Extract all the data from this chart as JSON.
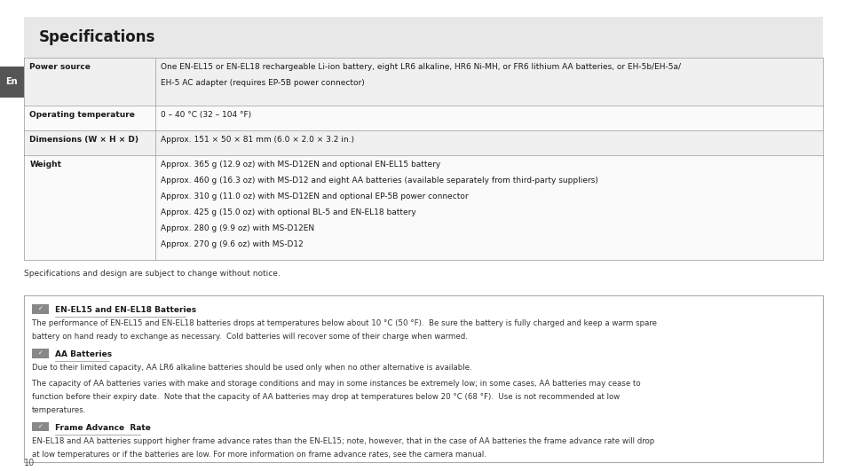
{
  "page_bg": "#ffffff",
  "header_bg": "#e8e8e8",
  "header_text": "Specifications",
  "header_font_size": 13,
  "header_bold": true,
  "table_row_bg1": "#f0f0f0",
  "table_row_bg2": "#fafafa",
  "left_sidebar_text": "En",
  "table_rows": [
    {
      "label": "Power source",
      "content": "One EN-EL15 or EN-EL18 rechargeable Li-ion battery, eight LR6 alkaline, HR6 Ni-MH, or FR6 lithium AA batteries, or EH-5b/EH-5a/\nEH-5 AC adapter (requires EP-5B power connector)"
    },
    {
      "label": "Operating temperature",
      "content": "0 – 40 °C (32 – 104 °F)"
    },
    {
      "label": "Dimensions (W × H × D)",
      "content": "Approx. 151 × 50 × 81 mm (6.0 × 2.0 × 3.2 in.)"
    },
    {
      "label": "Weight",
      "content": "Approx. 365 g (12.9 oz) with MS-D12EN and optional EN-EL15 battery\nApprox. 460 g (16.3 oz) with MS-D12 and eight AA batteries (available separately from third-party suppliers)\nApprox. 310 g (11.0 oz) with MS-D12EN and optional EP-5B power connector\nApprox. 425 g (15.0 oz) with optional BL-5 and EN-EL18 battery\nApprox. 280 g (9.9 oz) with MS-D12EN\nApprox. 270 g (9.6 oz) with MS-D12"
    }
  ],
  "footer_note": "Specifications and design are subject to change without notice.",
  "sections": [
    {
      "title": "EN-EL15 and EN-EL18 Batteries",
      "paragraphs": [
        "The performance of EN-EL15 and EN-EL18 batteries drops at temperatures below about 10 °C (50 °F).  Be sure the battery is fully charged and keep a warm spare battery on hand ready to exchange as necessary.  Cold batteries will recover some of their charge when warmed."
      ]
    },
    {
      "title": "AA Batteries",
      "paragraphs": [
        "Due to their limited capacity, AA LR6 alkaline batteries should be used only when no other alternative is available.",
        "The capacity of AA batteries varies with make and storage conditions and may in some instances be extremely low; in some cases, AA batteries may cease to function before their expiry date.  Note that the capacity of AA batteries may drop at temperatures below 20 °C (68 °F).  Use is not recommended at low temperatures."
      ]
    },
    {
      "title": "Frame Advance  Rate",
      "paragraphs": [
        "EN-EL18 and AA batteries support higher frame advance rates than the EN-EL15; note, however, that in the case of AA batteries the frame advance rate will drop at low temperatures or if the batteries are low. For more information on frame advance rates, see the camera manual."
      ]
    }
  ],
  "page_number": "10"
}
